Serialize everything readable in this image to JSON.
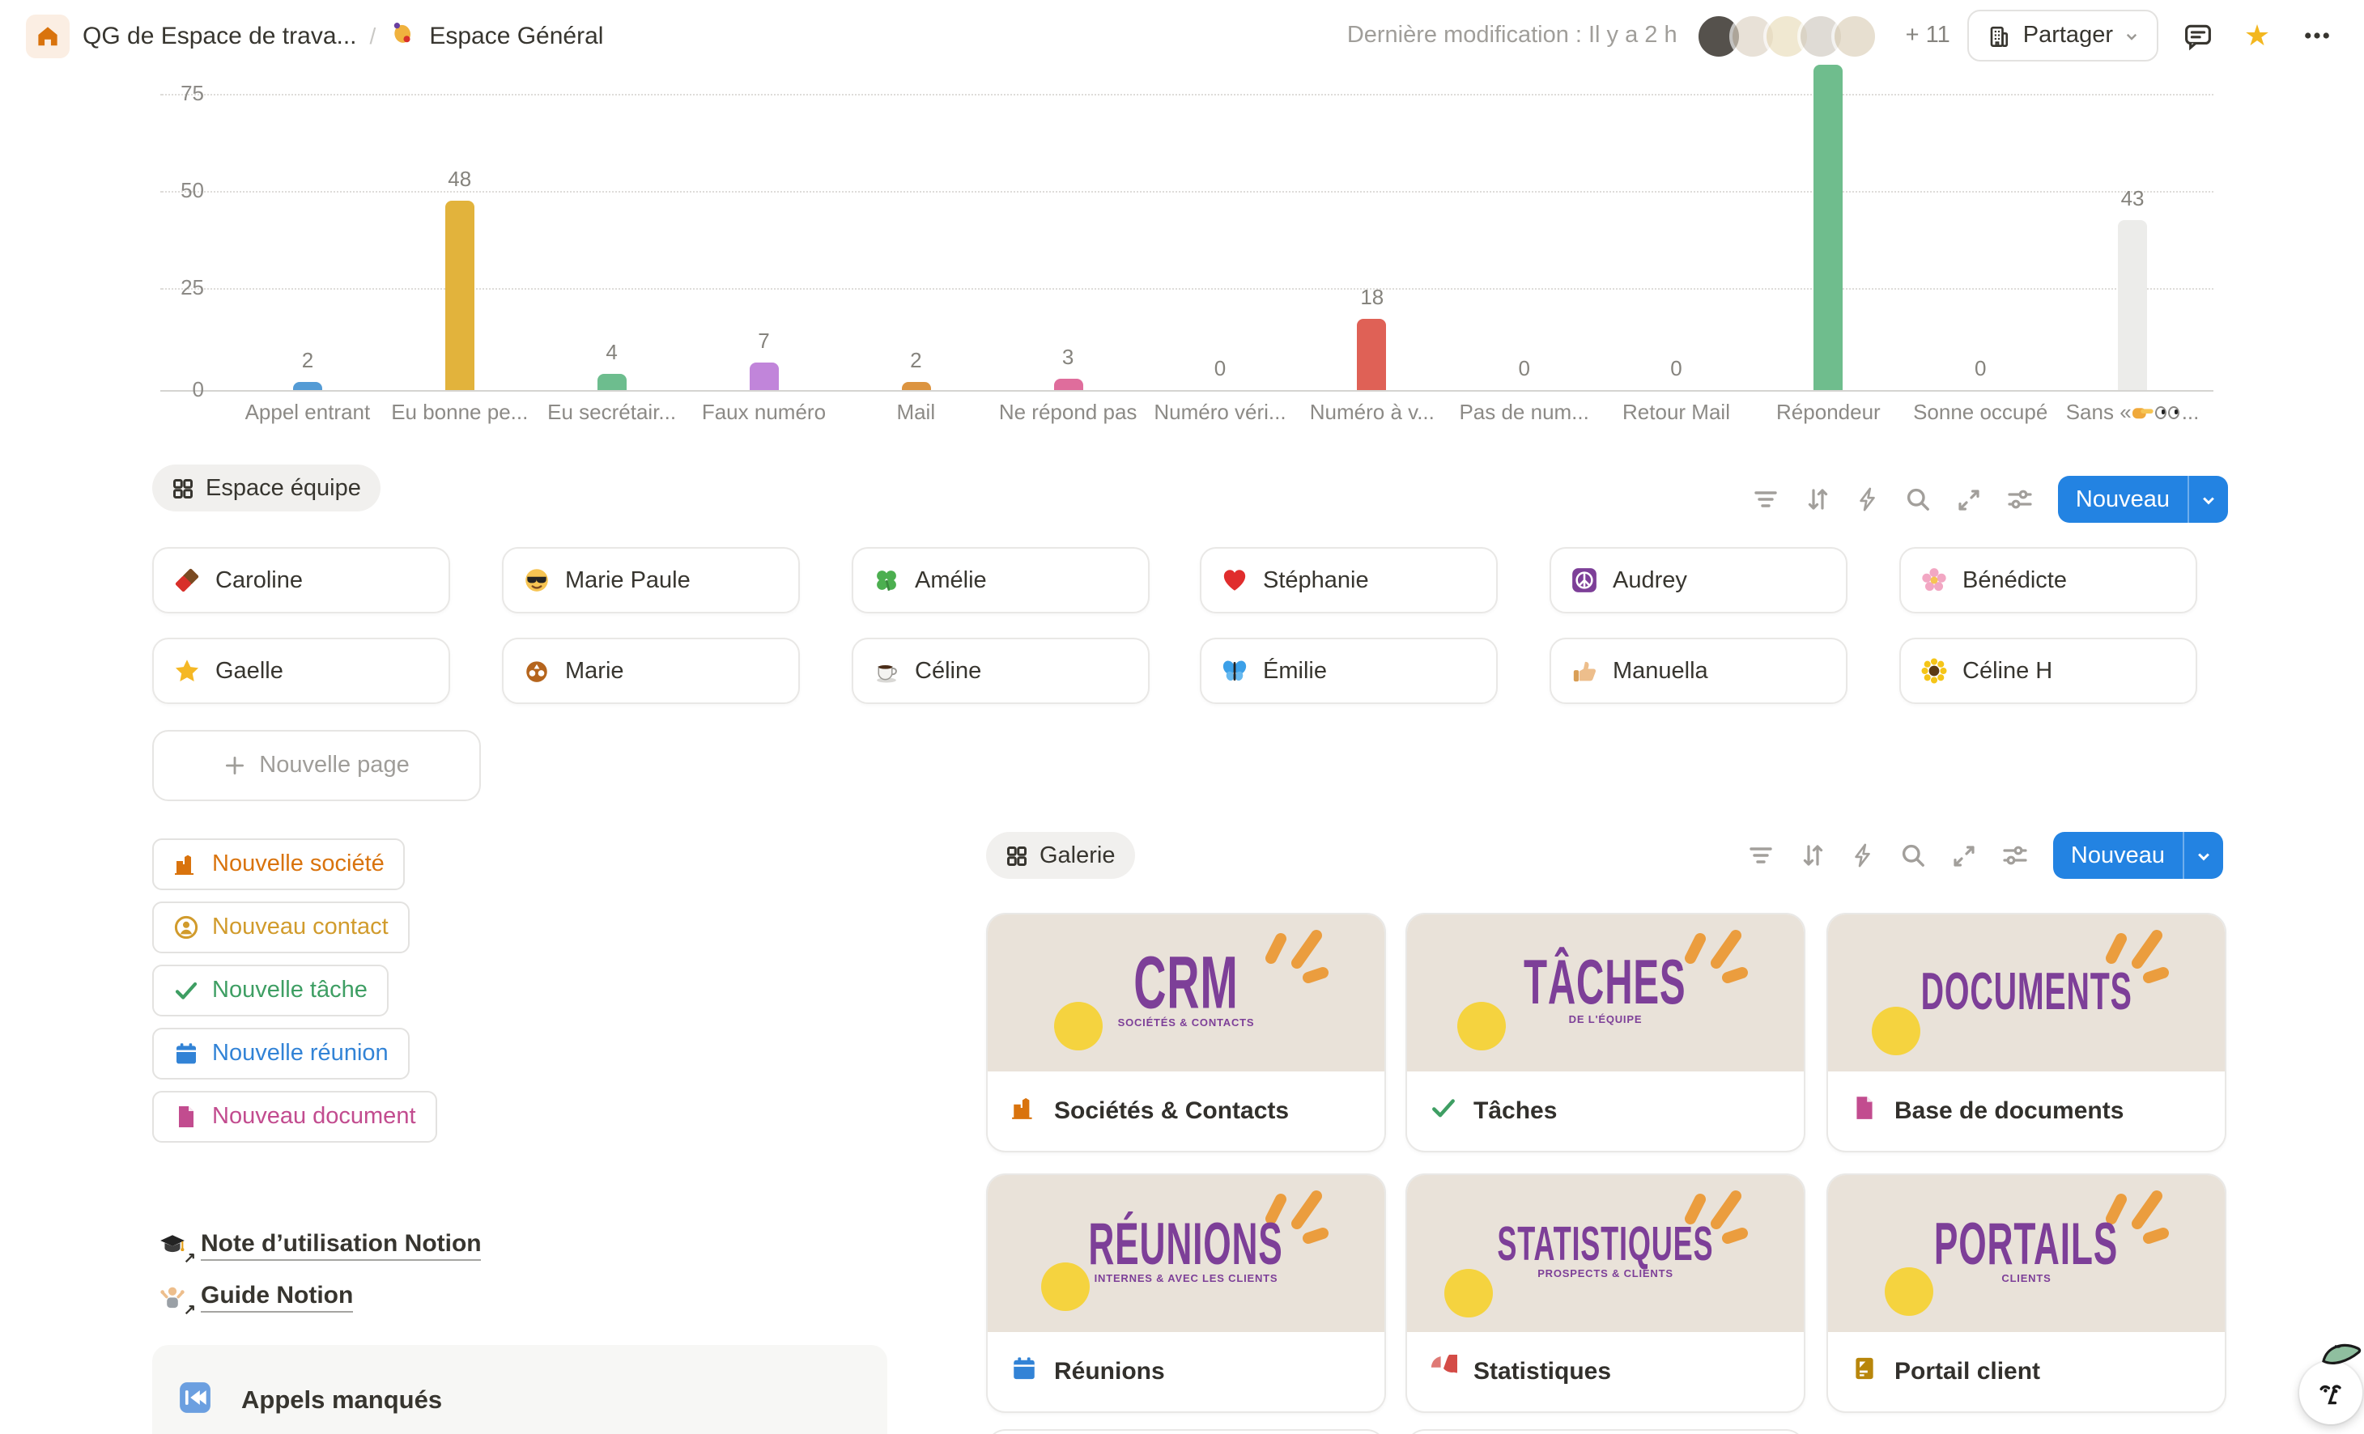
{
  "header": {
    "breadcrumb_1": "QG de Espace de trava...",
    "separator": "/",
    "breadcrumb_2": "Espace Général",
    "last_modified": "Dernière modification : Il y a 2 h",
    "avatars_overflow": "+ 11",
    "share_label": "Partager"
  },
  "chart_data": {
    "type": "bar",
    "categories": [
      "Appel entrant",
      "Eu bonne pe...",
      "Eu secrétair...",
      "Faux numéro",
      "Mail",
      "Ne répond pas",
      "Numéro véri...",
      "Numéro à v...",
      "Pas de num...",
      "Retour Mail",
      "Répondeur",
      "Sonne occupé",
      "Sans « 👉👀..."
    ],
    "values": [
      2,
      48,
      4,
      7,
      2,
      3,
      0,
      18,
      0,
      0,
      null,
      0,
      43
    ],
    "value_labels": [
      "2",
      "48",
      "4",
      "7",
      "2",
      "3",
      "0",
      "18",
      "0",
      "0",
      "",
      "0",
      "43"
    ],
    "colors": [
      "#549bd5",
      "#e2b33c",
      "#6dbd8e",
      "#c185da",
      "#dc9440",
      "#df6d9c",
      "#999999",
      "#df6156",
      "#999999",
      "#999999",
      "#6fbd8d",
      "#999999",
      "#ececea"
    ],
    "yticks": [
      "75",
      "50",
      "25",
      "0"
    ],
    "ylim": [
      0,
      75
    ],
    "grid": "dotted-horizontal",
    "note": "Répondeur bar is clipped at the top of the visible area; its value label is not shown",
    "category_12_display": {
      "prefix": "Sans « ",
      "suffix": "..."
    }
  },
  "team": {
    "view_label": "Espace équipe",
    "new_button": "Nouveau",
    "new_page_label": "Nouvelle page",
    "people": [
      {
        "name": "Caroline",
        "emoji": "chocolate-bar"
      },
      {
        "name": "Marie Paule",
        "emoji": "smiling-face-sunglasses"
      },
      {
        "name": "Amélie",
        "emoji": "four-leaf-clover"
      },
      {
        "name": "Stéphanie",
        "emoji": "red-heart"
      },
      {
        "name": "Audrey",
        "emoji": "peace-symbol"
      },
      {
        "name": "Bénédicte",
        "emoji": "cherry-blossom"
      },
      {
        "name": "Gaelle",
        "emoji": "star"
      },
      {
        "name": "Marie",
        "emoji": "pretzel"
      },
      {
        "name": "Céline",
        "emoji": "coffee"
      },
      {
        "name": "Émilie",
        "emoji": "butterfly"
      },
      {
        "name": "Manuella",
        "emoji": "thumbs-up"
      },
      {
        "name": "Céline H",
        "emoji": "sunflower"
      }
    ]
  },
  "actions": [
    {
      "label": "Nouvelle société",
      "color": "#d9730d"
    },
    {
      "label": "Nouveau contact",
      "color": "#d19b2c"
    },
    {
      "label": "Nouvelle tâche",
      "color": "#3e9e63"
    },
    {
      "label": "Nouvelle réunion",
      "color": "#3283d6"
    },
    {
      "label": "Nouveau document",
      "color": "#c24c8f"
    }
  ],
  "links": [
    {
      "label": "Note d’utilisation Notion",
      "emoji": "graduation-cap"
    },
    {
      "label": "Guide Notion",
      "emoji": "person-shrugging"
    }
  ],
  "missed_calls": {
    "label": "Appels manqués",
    "emoji": "last-track-button"
  },
  "galerie": {
    "view_label": "Galerie",
    "new_button": "Nouveau",
    "cards": [
      {
        "banner_title": "CRM",
        "banner_subtitle": "SOCIÉTÉS & CONTACTS",
        "footer": "Sociétés & Contacts",
        "footer_icon": "building-icon",
        "footer_color": "#d9730d"
      },
      {
        "banner_title": "TÂCHES",
        "banner_subtitle": "DE L'ÉQUIPE",
        "footer": "Tâches",
        "footer_icon": "check-icon",
        "footer_color": "#3e9e63"
      },
      {
        "banner_title": "DOCUMENTS",
        "banner_subtitle": "",
        "footer": "Base de documents",
        "footer_icon": "document-icon",
        "footer_color": "#c24c8f"
      },
      {
        "banner_title": "RÉUNIONS",
        "banner_subtitle": "INTERNES & AVEC LES CLIENTS",
        "footer": "Réunions",
        "footer_icon": "calendar-icon",
        "footer_color": "#3283d6"
      },
      {
        "banner_title": "STATISTIQUES",
        "banner_subtitle": "PROSPECTS & CLIENTS",
        "footer": "Statistiques",
        "footer_icon": "pie-chart-icon",
        "footer_color": "#d44c47"
      },
      {
        "banner_title": "PORTAILS",
        "banner_subtitle": "CLIENTS",
        "footer": "Portail client",
        "footer_icon": "portal-icon",
        "footer_color": "#b8860b"
      }
    ]
  }
}
